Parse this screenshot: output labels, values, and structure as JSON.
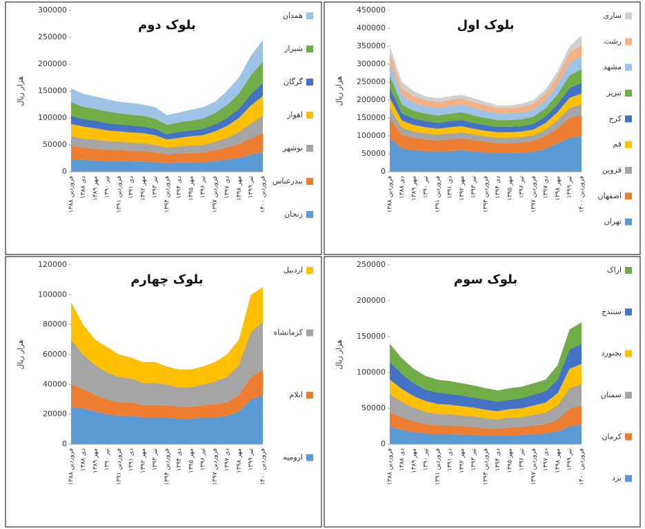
{
  "chart_data": [
    {
      "type": "area",
      "title": "بلوک دوم",
      "ylabel": "هزار ریال",
      "ylim": [
        0,
        300000
      ],
      "yticks": [
        0,
        50000,
        100000,
        150000,
        200000,
        250000,
        300000
      ],
      "categories": [
        "فروردین ۱۳۸۸",
        "دی ۱۳۸۸",
        "مهر ۱۳۸۹",
        "تیر ۱۳۹۰",
        "فروردین ۱۳۹۱",
        "دی ۱۳۹۱",
        "مهر ۱۳۹۲",
        "تیر ۱۳۹۳",
        "فروردین ۱۳۹۴",
        "دی ۱۳۹۴",
        "مهر ۱۳۹۵",
        "تیر ۱۳۹۶",
        "فروردین ۱۳۹۷",
        "دی ۱۳۹۷",
        "مهر ۱۳۹۸",
        "تیر ۱۳۹۹",
        "فروردین ۱۴۰۰"
      ],
      "series": [
        {
          "name": "زنجان",
          "color": "#5b9bd5",
          "values": [
            23000,
            22000,
            21000,
            20000,
            20000,
            19000,
            19000,
            18000,
            16000,
            17000,
            17000,
            18000,
            20000,
            23000,
            26000,
            32000,
            37000
          ]
        },
        {
          "name": "بندرعباس",
          "color": "#ed7d31",
          "values": [
            25000,
            23000,
            22000,
            21000,
            20000,
            20000,
            19000,
            18000,
            16000,
            17000,
            18000,
            18000,
            20000,
            22000,
            26000,
            30000,
            35000
          ]
        },
        {
          "name": "بوشهر",
          "color": "#a5a5a5",
          "values": [
            18000,
            17000,
            17000,
            16000,
            16000,
            15000,
            15000,
            14000,
            13000,
            13000,
            14000,
            14000,
            16000,
            18000,
            22000,
            28000,
            32000
          ]
        },
        {
          "name": "اهواز",
          "color": "#ffc000",
          "values": [
            23000,
            22000,
            21000,
            20000,
            19000,
            19000,
            19000,
            18000,
            15000,
            16000,
            17000,
            18000,
            19000,
            22000,
            26000,
            33000,
            37000
          ]
        },
        {
          "name": "گرگان",
          "color": "#4472c4",
          "values": [
            15000,
            14000,
            14000,
            13000,
            13000,
            13000,
            12000,
            12000,
            10000,
            11000,
            11000,
            12000,
            13000,
            15000,
            17000,
            21000,
            24000
          ]
        },
        {
          "name": "شیراز",
          "color": "#70ad47",
          "values": [
            25000,
            23000,
            22000,
            22000,
            21000,
            20000,
            20000,
            19000,
            17000,
            18000,
            18000,
            19000,
            21000,
            24000,
            28000,
            35000,
            40000
          ]
        },
        {
          "name": "همدان",
          "color": "#9dc3e6",
          "values": [
            26000,
            24000,
            23000,
            23000,
            21000,
            22000,
            21000,
            21000,
            18000,
            18000,
            20000,
            21000,
            21000,
            26000,
            30000,
            36000,
            40000
          ]
        }
      ]
    },
    {
      "type": "area",
      "title": "بلوک اول",
      "ylabel": "هزار ریال",
      "ylim": [
        0,
        450000
      ],
      "yticks": [
        0,
        50000,
        100000,
        150000,
        200000,
        250000,
        300000,
        350000,
        400000,
        450000
      ],
      "categories": [
        "فروردین ۱۳۸۸",
        "دی ۱۳۸۸",
        "مهر ۱۳۸۹",
        "تیر ۱۳۹۰",
        "فروردین ۱۳۹۱",
        "دی ۱۳۹۱",
        "مهر ۱۳۹۲",
        "تیر ۱۳۹۳",
        "فروردین ۱۳۹۴",
        "دی ۱۳۹۴",
        "مهر ۱۳۹۵",
        "تیر ۱۳۹۶",
        "فروردین ۱۳۹۷",
        "دی ۱۳۹۷",
        "مهر ۱۳۹۸",
        "تیر ۱۳۹۹",
        "فروردین ۱۴۰۰"
      ],
      "series": [
        {
          "name": "تهران",
          "color": "#5b9bd5",
          "values": [
            95000,
            65000,
            60000,
            58000,
            57000,
            58000,
            60000,
            57000,
            54000,
            52000,
            52000,
            53000,
            56000,
            65000,
            80000,
            95000,
            100000
          ]
        },
        {
          "name": "اصفهان",
          "color": "#ed7d31",
          "values": [
            55000,
            38000,
            34000,
            32000,
            31000,
            32000,
            33000,
            31000,
            30000,
            28000,
            28000,
            29000,
            30000,
            35000,
            42000,
            55000,
            58000
          ]
        },
        {
          "name": "قزوین",
          "color": "#a5a5a5",
          "values": [
            28000,
            20000,
            18000,
            17000,
            16000,
            17000,
            17000,
            16000,
            15000,
            15000,
            15000,
            15000,
            16000,
            18000,
            22000,
            28000,
            30000
          ]
        },
        {
          "name": "قم",
          "color": "#ffc000",
          "values": [
            28000,
            20000,
            18000,
            17000,
            16000,
            17000,
            17000,
            16000,
            15000,
            15000,
            15000,
            15000,
            16000,
            18000,
            22000,
            28000,
            30000
          ]
        },
        {
          "name": "کرج",
          "color": "#4472c4",
          "values": [
            28000,
            20000,
            18000,
            17000,
            16000,
            17000,
            17000,
            16000,
            16000,
            15000,
            15000,
            15000,
            16000,
            18000,
            22000,
            28000,
            30000
          ]
        },
        {
          "name": "تبریز",
          "color": "#70ad47",
          "values": [
            35000,
            25000,
            22000,
            21000,
            21000,
            21000,
            22000,
            21000,
            20000,
            19000,
            19000,
            19000,
            20000,
            23000,
            28000,
            35000,
            38000
          ]
        },
        {
          "name": "مشهد",
          "color": "#9dc3e6",
          "values": [
            35000,
            25000,
            22000,
            21000,
            21000,
            21000,
            22000,
            21000,
            20000,
            19000,
            19000,
            19000,
            20000,
            23000,
            28000,
            35000,
            38000
          ]
        },
        {
          "name": "رشت",
          "color": "#f4b183",
          "values": [
            28000,
            20000,
            18000,
            17000,
            16000,
            17000,
            17000,
            16000,
            15000,
            15000,
            15000,
            15000,
            16000,
            18000,
            22000,
            28000,
            30000
          ]
        },
        {
          "name": "ساری",
          "color": "#d0d0d0",
          "values": [
            18000,
            17000,
            15000,
            10000,
            11000,
            10000,
            10000,
            11000,
            10000,
            7000,
            7000,
            10000,
            10000,
            12000,
            14000,
            18000,
            26000
          ]
        }
      ]
    },
    {
      "type": "area",
      "title": "بلوک چهارم",
      "ylabel": "هزار ریال",
      "ylim": [
        0,
        120000
      ],
      "yticks": [
        0,
        20000,
        40000,
        60000,
        80000,
        100000,
        120000
      ],
      "categories": [
        "فروردین ۱۳۸۸",
        "دی ۱۳۸۸",
        "مهر ۱۳۸۹",
        "تیر ۱۳۹۰",
        "فروردین ۱۳۹۱",
        "دی ۱۳۹۱",
        "مهر ۱۳۹۲",
        "تیر ۱۳۹۳",
        "فروردین ۱۳۹۴",
        "دی ۱۳۹۴",
        "مهر ۱۳۹۵",
        "تیر ۱۳۹۶",
        "فروردین ۱۳۹۷",
        "دی ۱۳۹۷",
        "مهر ۱۳۹۸",
        "تیر ۱۳۹۹",
        "فروردین ۱۴۰۰"
      ],
      "series": [
        {
          "name": "ارومیه",
          "color": "#5b9bd5",
          "values": [
            25000,
            24000,
            22000,
            20000,
            19000,
            19000,
            18000,
            18000,
            18000,
            17000,
            17000,
            18000,
            18000,
            19000,
            22000,
            30000,
            33000
          ]
        },
        {
          "name": "ایلام",
          "color": "#ed7d31",
          "values": [
            15000,
            13000,
            11000,
            10000,
            9000,
            9000,
            8000,
            8000,
            8000,
            8000,
            8000,
            8000,
            9000,
            9000,
            11000,
            15000,
            17000
          ]
        },
        {
          "name": "کرمانشاه",
          "color": "#a5a5a5",
          "values": [
            30000,
            23000,
            20000,
            18000,
            17000,
            16000,
            15000,
            15000,
            14000,
            13000,
            13000,
            14000,
            15000,
            17000,
            20000,
            30000,
            32000
          ]
        },
        {
          "name": "اردبیل",
          "color": "#ffc000",
          "values": [
            25000,
            20000,
            17000,
            17000,
            15000,
            14000,
            14000,
            14000,
            12000,
            12000,
            12000,
            12000,
            13000,
            15000,
            17000,
            25000,
            23000
          ]
        }
      ]
    },
    {
      "type": "area",
      "title": "بلوک سوم",
      "ylabel": "هزار ریال",
      "ylim": [
        0,
        250000
      ],
      "yticks": [
        0,
        50000,
        100000,
        150000,
        200000,
        250000
      ],
      "categories": [
        "فروردین ۱۳۸۸",
        "دی ۱۳۸۸",
        "مهر ۱۳۸۹",
        "تیر ۱۳۹۰",
        "فروردین ۱۳۹۱",
        "دی ۱۳۹۱",
        "مهر ۱۳۹۲",
        "تیر ۱۳۹۳",
        "فروردین ۱۳۹۴",
        "دی ۱۳۹۴",
        "مهر ۱۳۹۵",
        "تیر ۱۳۹۶",
        "فروردین ۱۳۹۷",
        "دی ۱۳۹۷",
        "مهر ۱۳۹۸",
        "تیر ۱۳۹۹",
        "فروردین ۱۴۰۰"
      ],
      "series": [
        {
          "name": "یزد",
          "color": "#5b9bd5",
          "values": [
            25000,
            20000,
            17000,
            15000,
            14000,
            14000,
            13000,
            13000,
            12000,
            12000,
            12000,
            13000,
            14000,
            15000,
            18000,
            25000,
            28000
          ]
        },
        {
          "name": "کرمان",
          "color": "#ed7d31",
          "values": [
            20000,
            17000,
            15000,
            13000,
            12000,
            12000,
            12000,
            11000,
            10000,
            10000,
            11000,
            11000,
            12000,
            13000,
            16000,
            25000,
            26000
          ]
        },
        {
          "name": "سمنان",
          "color": "#a5a5a5",
          "values": [
            25000,
            22000,
            19000,
            17000,
            16000,
            16000,
            15000,
            15000,
            14000,
            13000,
            14000,
            14000,
            15000,
            16000,
            20000,
            28000,
            30000
          ]
        },
        {
          "name": "بجنورد",
          "color": "#ffc000",
          "values": [
            20000,
            18000,
            16000,
            15000,
            14000,
            13000,
            13000,
            12000,
            12000,
            11000,
            12000,
            12000,
            13000,
            14000,
            17000,
            27000,
            28000
          ]
        },
        {
          "name": "سنندج",
          "color": "#4472c4",
          "values": [
            25000,
            21000,
            18000,
            16000,
            16000,
            15000,
            15000,
            14000,
            14000,
            13000,
            13000,
            14000,
            15000,
            16000,
            19000,
            27000,
            28000
          ]
        },
        {
          "name": "اراک",
          "color": "#70ad47",
          "values": [
            25000,
            22000,
            20000,
            19000,
            18000,
            18000,
            17000,
            17000,
            16000,
            16000,
            16000,
            16000,
            16000,
            16000,
            20000,
            28000,
            30000
          ]
        }
      ]
    }
  ]
}
